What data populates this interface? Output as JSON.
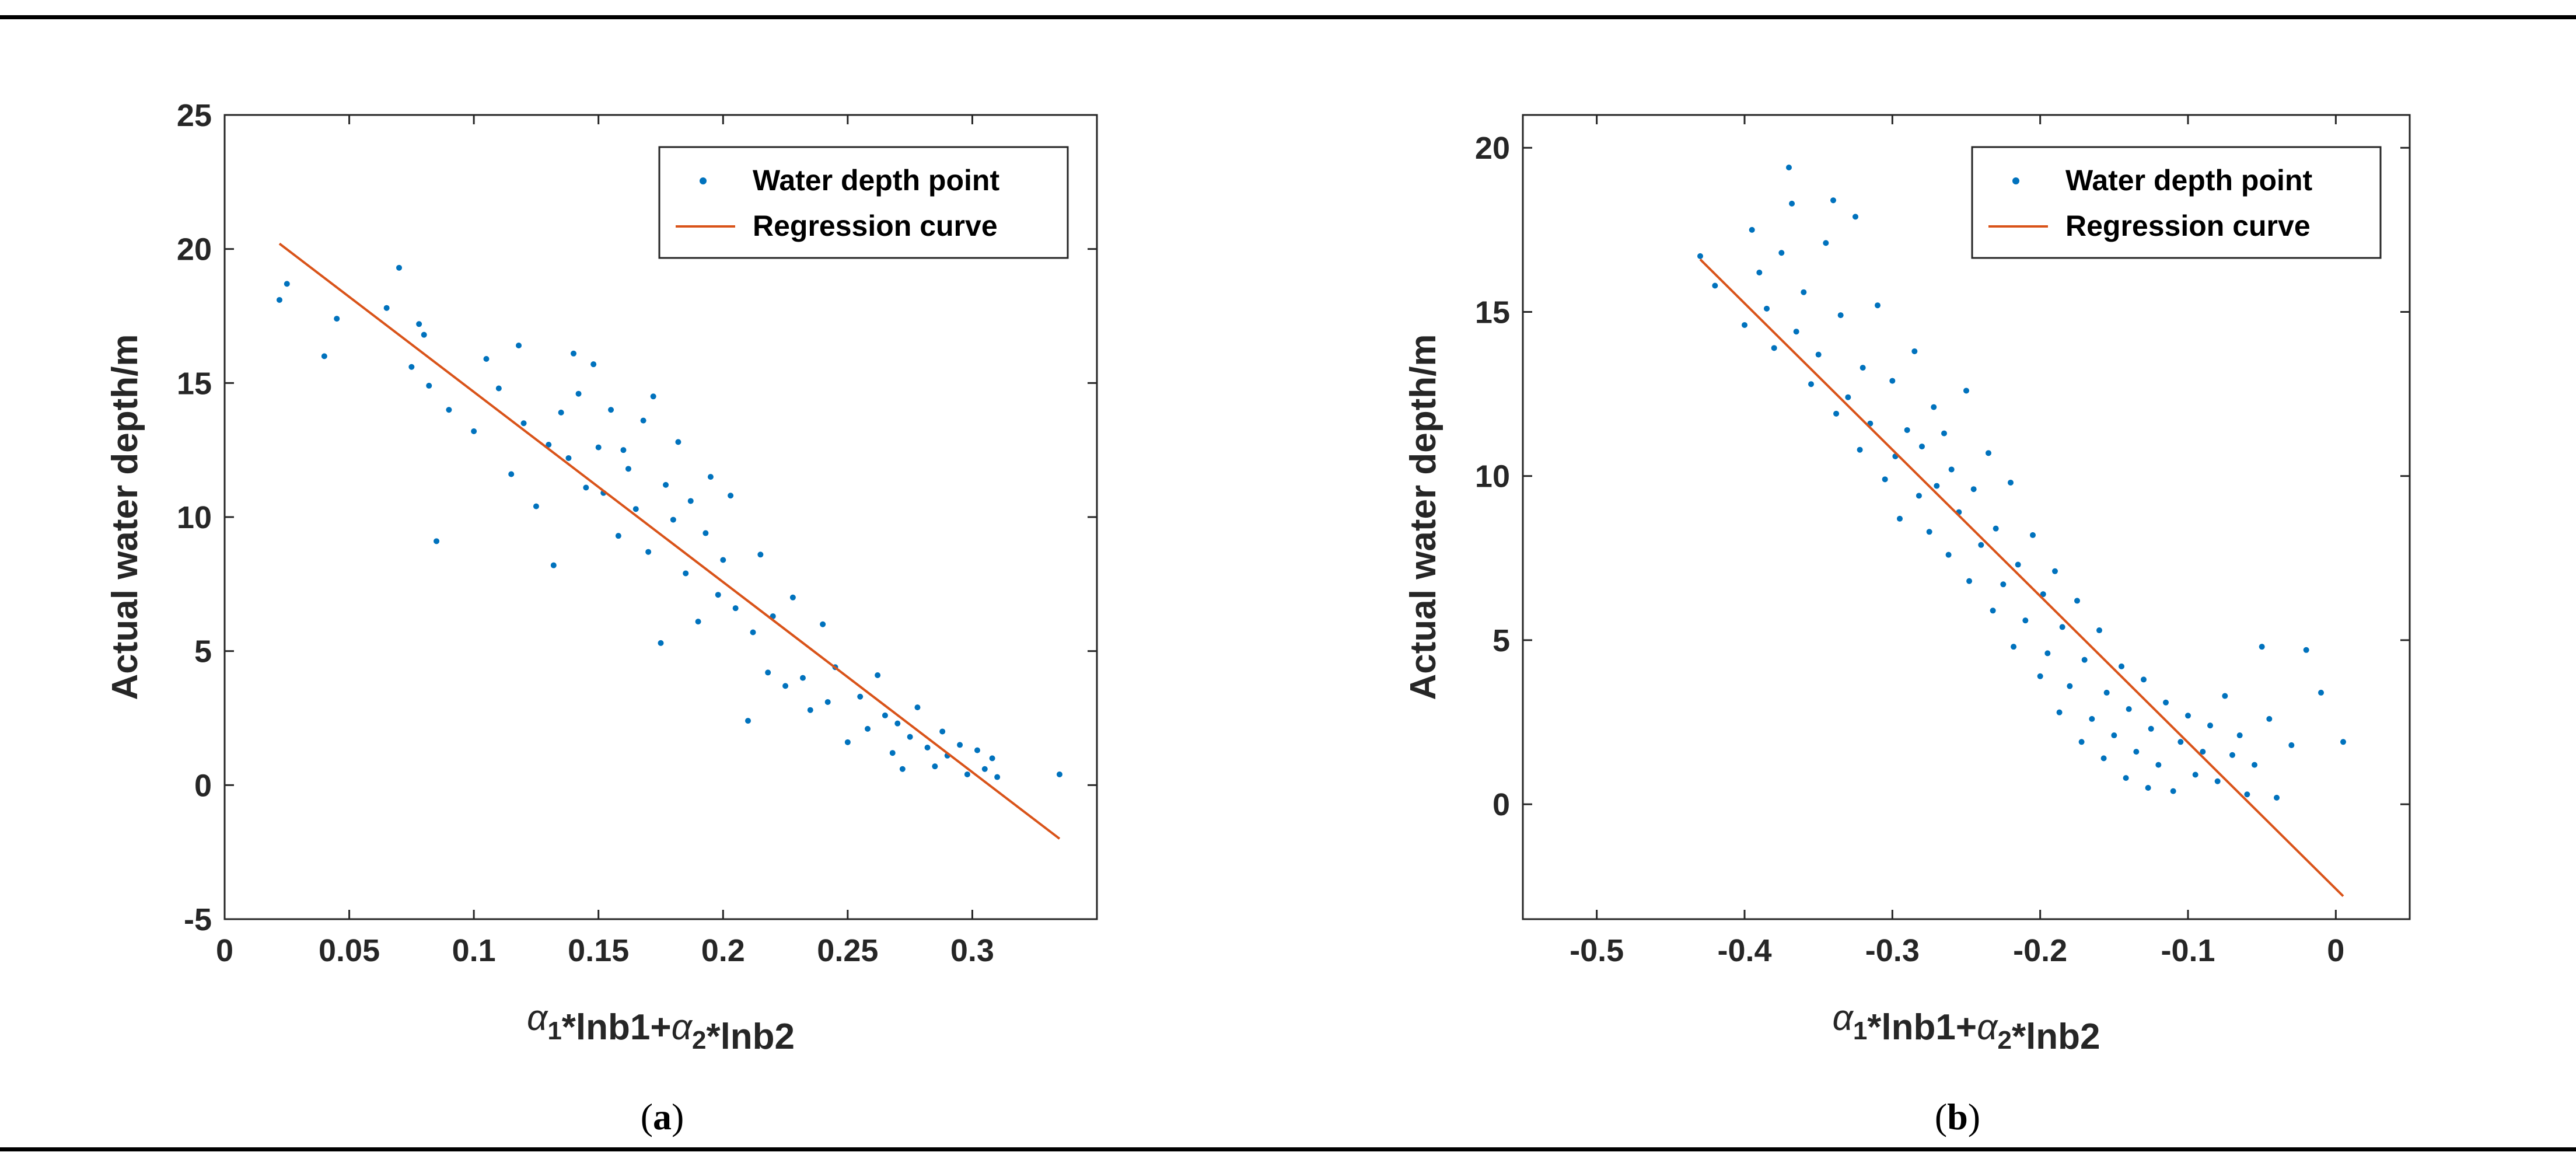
{
  "colors": {
    "points": "#0072BD",
    "regression": "#D95319",
    "axis": "#262626"
  },
  "chart_data": [
    {
      "type": "scatter",
      "panel_label": "a",
      "xlabel": "α1*lnb1+α2*lnb2",
      "ylabel": "Actual water depth/m",
      "xlim": [
        0,
        0.35
      ],
      "ylim": [
        -5,
        25
      ],
      "xticks": [
        0,
        0.05,
        0.1,
        0.15,
        0.2,
        0.25,
        0.3
      ],
      "xtick_labels": [
        "0",
        "0.05",
        "0.1",
        "0.15",
        "0.2",
        "0.25",
        "0.3"
      ],
      "yticks": [
        -5,
        0,
        5,
        10,
        15,
        20,
        25
      ],
      "ytick_labels": [
        "-5",
        "0",
        "5",
        "10",
        "15",
        "20",
        "25"
      ],
      "legend": {
        "position": "top-right",
        "entries": [
          "Water depth point",
          "Regression curve"
        ]
      },
      "series": [
        {
          "name": "Water depth point",
          "kind": "scatter",
          "points": [
            [
              0.022,
              18.1
            ],
            [
              0.025,
              18.7
            ],
            [
              0.04,
              16.0
            ],
            [
              0.045,
              17.4
            ],
            [
              0.065,
              17.8
            ],
            [
              0.07,
              19.3
            ],
            [
              0.075,
              15.6
            ],
            [
              0.078,
              17.2
            ],
            [
              0.08,
              16.8
            ],
            [
              0.082,
              14.9
            ],
            [
              0.085,
              9.1
            ],
            [
              0.09,
              14.0
            ],
            [
              0.1,
              13.2
            ],
            [
              0.105,
              15.9
            ],
            [
              0.11,
              14.8
            ],
            [
              0.115,
              11.6
            ],
            [
              0.118,
              16.4
            ],
            [
              0.12,
              13.5
            ],
            [
              0.125,
              10.4
            ],
            [
              0.13,
              12.7
            ],
            [
              0.132,
              8.2
            ],
            [
              0.135,
              13.9
            ],
            [
              0.138,
              12.2
            ],
            [
              0.14,
              16.1
            ],
            [
              0.142,
              14.6
            ],
            [
              0.145,
              11.1
            ],
            [
              0.148,
              15.7
            ],
            [
              0.15,
              12.6
            ],
            [
              0.152,
              10.9
            ],
            [
              0.155,
              14.0
            ],
            [
              0.158,
              9.3
            ],
            [
              0.16,
              12.5
            ],
            [
              0.162,
              11.8
            ],
            [
              0.165,
              10.3
            ],
            [
              0.168,
              13.6
            ],
            [
              0.17,
              8.7
            ],
            [
              0.172,
              14.5
            ],
            [
              0.175,
              5.3
            ],
            [
              0.177,
              11.2
            ],
            [
              0.18,
              9.9
            ],
            [
              0.182,
              12.8
            ],
            [
              0.185,
              7.9
            ],
            [
              0.187,
              10.6
            ],
            [
              0.19,
              6.1
            ],
            [
              0.193,
              9.4
            ],
            [
              0.195,
              11.5
            ],
            [
              0.198,
              7.1
            ],
            [
              0.2,
              8.4
            ],
            [
              0.203,
              10.8
            ],
            [
              0.205,
              6.6
            ],
            [
              0.21,
              2.4
            ],
            [
              0.212,
              5.7
            ],
            [
              0.215,
              8.6
            ],
            [
              0.218,
              4.2
            ],
            [
              0.22,
              6.3
            ],
            [
              0.225,
              3.7
            ],
            [
              0.228,
              7.0
            ],
            [
              0.232,
              4.0
            ],
            [
              0.235,
              2.8
            ],
            [
              0.24,
              6.0
            ],
            [
              0.242,
              3.1
            ],
            [
              0.245,
              4.4
            ],
            [
              0.25,
              1.6
            ],
            [
              0.255,
              3.3
            ],
            [
              0.258,
              2.1
            ],
            [
              0.262,
              4.1
            ],
            [
              0.265,
              2.6
            ],
            [
              0.268,
              1.2
            ],
            [
              0.27,
              2.3
            ],
            [
              0.272,
              0.6
            ],
            [
              0.275,
              1.8
            ],
            [
              0.278,
              2.9
            ],
            [
              0.282,
              1.4
            ],
            [
              0.285,
              0.7
            ],
            [
              0.288,
              2.0
            ],
            [
              0.29,
              1.1
            ],
            [
              0.295,
              1.5
            ],
            [
              0.298,
              0.4
            ],
            [
              0.302,
              1.3
            ],
            [
              0.305,
              0.6
            ],
            [
              0.308,
              1.0
            ],
            [
              0.31,
              0.3
            ],
            [
              0.335,
              0.4
            ]
          ]
        },
        {
          "name": "Regression curve",
          "kind": "line",
          "x": [
            0.022,
            0.335
          ],
          "y": [
            20.2,
            -2.0
          ]
        }
      ]
    },
    {
      "type": "scatter",
      "panel_label": "b",
      "xlabel": "α1*lnb1+α2*lnb2",
      "ylabel": "Actual water depth/m",
      "xlim": [
        -0.55,
        0.05
      ],
      "ylim": [
        -3.5,
        21
      ],
      "xticks": [
        -0.5,
        -0.4,
        -0.3,
        -0.2,
        -0.1,
        0
      ],
      "xtick_labels": [
        "-0.5",
        "-0.4",
        "-0.3",
        "-0.2",
        "-0.1",
        "0"
      ],
      "yticks": [
        0,
        5,
        10,
        15,
        20
      ],
      "ytick_labels": [
        "0",
        "5",
        "10",
        "15",
        "20"
      ],
      "legend": {
        "position": "top-right",
        "entries": [
          "Water depth point",
          "Regression curve"
        ]
      },
      "series": [
        {
          "name": "Water depth point",
          "kind": "scatter",
          "points": [
            [
              -0.43,
              16.7
            ],
            [
              -0.42,
              15.8
            ],
            [
              -0.4,
              14.6
            ],
            [
              -0.395,
              17.5
            ],
            [
              -0.39,
              16.2
            ],
            [
              -0.385,
              15.1
            ],
            [
              -0.38,
              13.9
            ],
            [
              -0.375,
              16.8
            ],
            [
              -0.37,
              19.4
            ],
            [
              -0.368,
              18.3
            ],
            [
              -0.365,
              14.4
            ],
            [
              -0.36,
              15.6
            ],
            [
              -0.355,
              12.8
            ],
            [
              -0.35,
              13.7
            ],
            [
              -0.345,
              17.1
            ],
            [
              -0.34,
              18.4
            ],
            [
              -0.338,
              11.9
            ],
            [
              -0.335,
              14.9
            ],
            [
              -0.33,
              12.4
            ],
            [
              -0.325,
              17.9
            ],
            [
              -0.322,
              10.8
            ],
            [
              -0.32,
              13.3
            ],
            [
              -0.315,
              11.6
            ],
            [
              -0.31,
              15.2
            ],
            [
              -0.305,
              9.9
            ],
            [
              -0.3,
              12.9
            ],
            [
              -0.298,
              10.6
            ],
            [
              -0.295,
              8.7
            ],
            [
              -0.29,
              11.4
            ],
            [
              -0.285,
              13.8
            ],
            [
              -0.282,
              9.4
            ],
            [
              -0.28,
              10.9
            ],
            [
              -0.275,
              8.3
            ],
            [
              -0.272,
              12.1
            ],
            [
              -0.27,
              9.7
            ],
            [
              -0.265,
              11.3
            ],
            [
              -0.262,
              7.6
            ],
            [
              -0.26,
              10.2
            ],
            [
              -0.255,
              8.9
            ],
            [
              -0.25,
              12.6
            ],
            [
              -0.248,
              6.8
            ],
            [
              -0.245,
              9.6
            ],
            [
              -0.24,
              7.9
            ],
            [
              -0.235,
              10.7
            ],
            [
              -0.232,
              5.9
            ],
            [
              -0.23,
              8.4
            ],
            [
              -0.225,
              6.7
            ],
            [
              -0.22,
              9.8
            ],
            [
              -0.218,
              4.8
            ],
            [
              -0.215,
              7.3
            ],
            [
              -0.21,
              5.6
            ],
            [
              -0.205,
              8.2
            ],
            [
              -0.2,
              3.9
            ],
            [
              -0.198,
              6.4
            ],
            [
              -0.195,
              4.6
            ],
            [
              -0.19,
              7.1
            ],
            [
              -0.187,
              2.8
            ],
            [
              -0.185,
              5.4
            ],
            [
              -0.18,
              3.6
            ],
            [
              -0.175,
              6.2
            ],
            [
              -0.172,
              1.9
            ],
            [
              -0.17,
              4.4
            ],
            [
              -0.165,
              2.6
            ],
            [
              -0.16,
              5.3
            ],
            [
              -0.157,
              1.4
            ],
            [
              -0.155,
              3.4
            ],
            [
              -0.15,
              2.1
            ],
            [
              -0.145,
              4.2
            ],
            [
              -0.142,
              0.8
            ],
            [
              -0.14,
              2.9
            ],
            [
              -0.135,
              1.6
            ],
            [
              -0.13,
              3.8
            ],
            [
              -0.127,
              0.5
            ],
            [
              -0.125,
              2.3
            ],
            [
              -0.12,
              1.2
            ],
            [
              -0.115,
              3.1
            ],
            [
              -0.11,
              0.4
            ],
            [
              -0.105,
              1.9
            ],
            [
              -0.1,
              2.7
            ],
            [
              -0.095,
              0.9
            ],
            [
              -0.09,
              1.6
            ],
            [
              -0.085,
              2.4
            ],
            [
              -0.08,
              0.7
            ],
            [
              -0.075,
              3.3
            ],
            [
              -0.07,
              1.5
            ],
            [
              -0.065,
              2.1
            ],
            [
              -0.06,
              0.3
            ],
            [
              -0.055,
              1.2
            ],
            [
              -0.05,
              4.8
            ],
            [
              -0.045,
              2.6
            ],
            [
              -0.04,
              0.2
            ],
            [
              -0.03,
              1.8
            ],
            [
              -0.02,
              4.7
            ],
            [
              -0.01,
              3.4
            ],
            [
              0.005,
              1.9
            ]
          ]
        },
        {
          "name": "Regression curve",
          "kind": "line",
          "x": [
            -0.43,
            0.005
          ],
          "y": [
            16.6,
            -2.8
          ]
        }
      ]
    }
  ]
}
